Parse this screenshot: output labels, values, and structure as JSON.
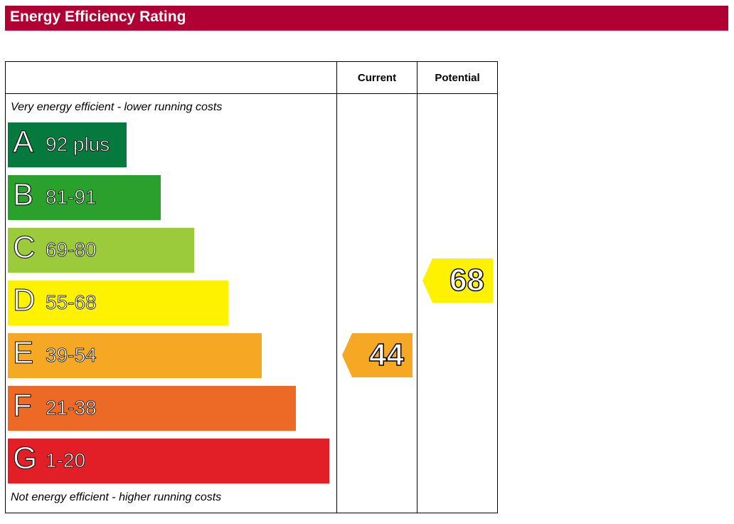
{
  "title": "Energy Efficiency Rating",
  "header": {
    "current_label": "Current",
    "potential_label": "Potential"
  },
  "captions": {
    "top": "Very energy efficient - lower running costs",
    "bottom": "Not energy efficient - higher running costs"
  },
  "chart_data": {
    "type": "bar",
    "title": "Energy Efficiency Rating",
    "bands": [
      {
        "letter": "A",
        "range": "92 plus",
        "color": "#067a3e",
        "rank": 1
      },
      {
        "letter": "B",
        "range": "81-91",
        "color": "#2aa02d",
        "rank": 2
      },
      {
        "letter": "C",
        "range": "69-80",
        "color": "#9bcb3b",
        "rank": 3
      },
      {
        "letter": "D",
        "range": "55-68",
        "color": "#fff200",
        "rank": 4
      },
      {
        "letter": "E",
        "range": "39-54",
        "color": "#f5a823",
        "rank": 5
      },
      {
        "letter": "F",
        "range": "21-38",
        "color": "#ec6a25",
        "rank": 6
      },
      {
        "letter": "G",
        "range": "1-20",
        "color": "#e21f26",
        "rank": 7
      }
    ],
    "current": {
      "value": 44,
      "band": "E",
      "color": "#f5a823"
    },
    "potential": {
      "value": 68,
      "band": "D",
      "color": "#fff200"
    }
  }
}
